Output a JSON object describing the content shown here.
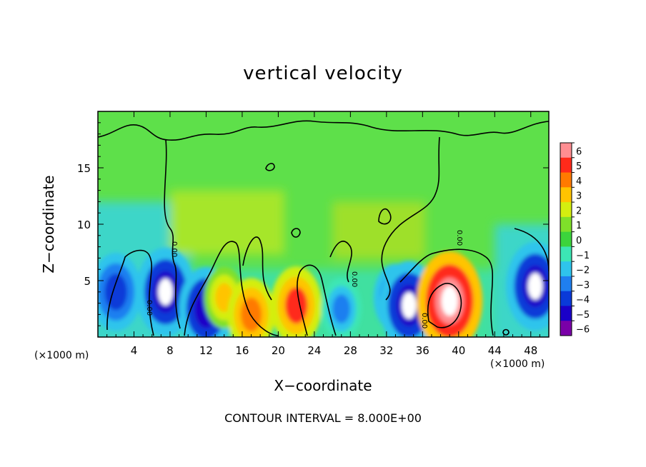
{
  "chart_data": {
    "type": "heatmap",
    "title": "vertical velocity",
    "xlabel": "X−coordinate",
    "ylabel": "Z−coordinate",
    "x_unit_label": "(×1000 m)",
    "footer": "CONTOUR INTERVAL = 8.000E+00",
    "xlim": [
      0,
      50
    ],
    "ylim": [
      0,
      20
    ],
    "x_ticks": [
      4,
      8,
      12,
      16,
      20,
      24,
      28,
      32,
      36,
      40,
      44,
      48
    ],
    "y_ticks": [
      5,
      10,
      15
    ],
    "colorbar": {
      "levels": [
        -6,
        -5,
        -4,
        -3,
        -2,
        -1,
        0,
        1,
        2,
        3,
        4,
        5,
        6
      ],
      "labels": [
        "6",
        "5",
        "4",
        "3",
        "2",
        "1",
        "0",
        "−1",
        "−2",
        "−3",
        "−4",
        "−5",
        "−6"
      ],
      "colors": [
        "#7a00a8",
        "#1a00c8",
        "#0a3ad8",
        "#1f7ff0",
        "#2fc4ec",
        "#3ce6b4",
        "#3cd43c",
        "#7fe02a",
        "#d4ee10",
        "#ffc400",
        "#ff7a00",
        "#ff2a1a",
        "#ff8e92"
      ]
    },
    "contour_labels": [
      "0.00",
      "0.00",
      "0.00",
      "0.00",
      "0.00"
    ],
    "features": [
      {
        "x": 7.5,
        "z": 4.0,
        "w": -5.5
      },
      {
        "x": 12.0,
        "z": 2.5,
        "w": -5.0
      },
      {
        "x": 14.0,
        "z": 3.5,
        "w": 3.0
      },
      {
        "x": 17.0,
        "z": 2.0,
        "w": 4.0
      },
      {
        "x": 22.0,
        "z": 2.8,
        "w": 4.5
      },
      {
        "x": 27.0,
        "z": 2.5,
        "w": -3.0
      },
      {
        "x": 33.0,
        "z": 3.5,
        "w": -3.5
      },
      {
        "x": 34.5,
        "z": 2.8,
        "w": -5.5
      },
      {
        "x": 39.0,
        "z": 3.2,
        "w": 6.5
      },
      {
        "x": 48.5,
        "z": 4.5,
        "w": -5.5
      },
      {
        "x": 2.0,
        "z": 4.0,
        "w": -4.5
      }
    ]
  }
}
